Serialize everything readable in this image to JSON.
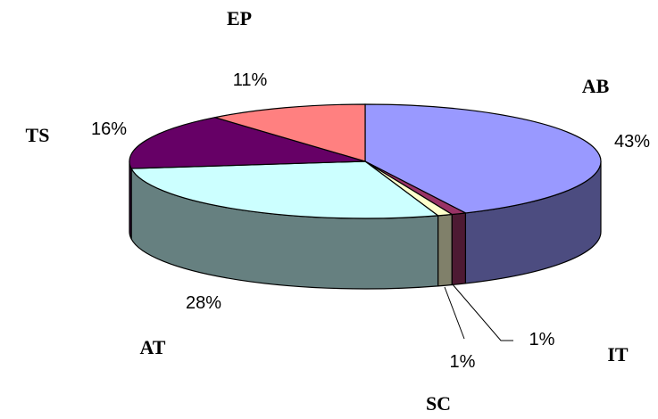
{
  "chart_data": {
    "type": "pie",
    "style": "3d-exploded-off",
    "categories": [
      "AB",
      "IT",
      "SC",
      "AT",
      "TS",
      "EP"
    ],
    "values": [
      43,
      1,
      1,
      28,
      16,
      11
    ],
    "value_labels": [
      "43%",
      "1%",
      "1%",
      "28%",
      "16%",
      "11%"
    ],
    "colors": {
      "top": [
        "#9999ff",
        "#993366",
        "#ffffcc",
        "#ccffff",
        "#660066",
        "#ff8080"
      ],
      "side": [
        "#4c4c80",
        "#4d1a33",
        "#80806a",
        "#668080",
        "#330033",
        "#804040"
      ]
    },
    "legend": "none",
    "title": ""
  }
}
